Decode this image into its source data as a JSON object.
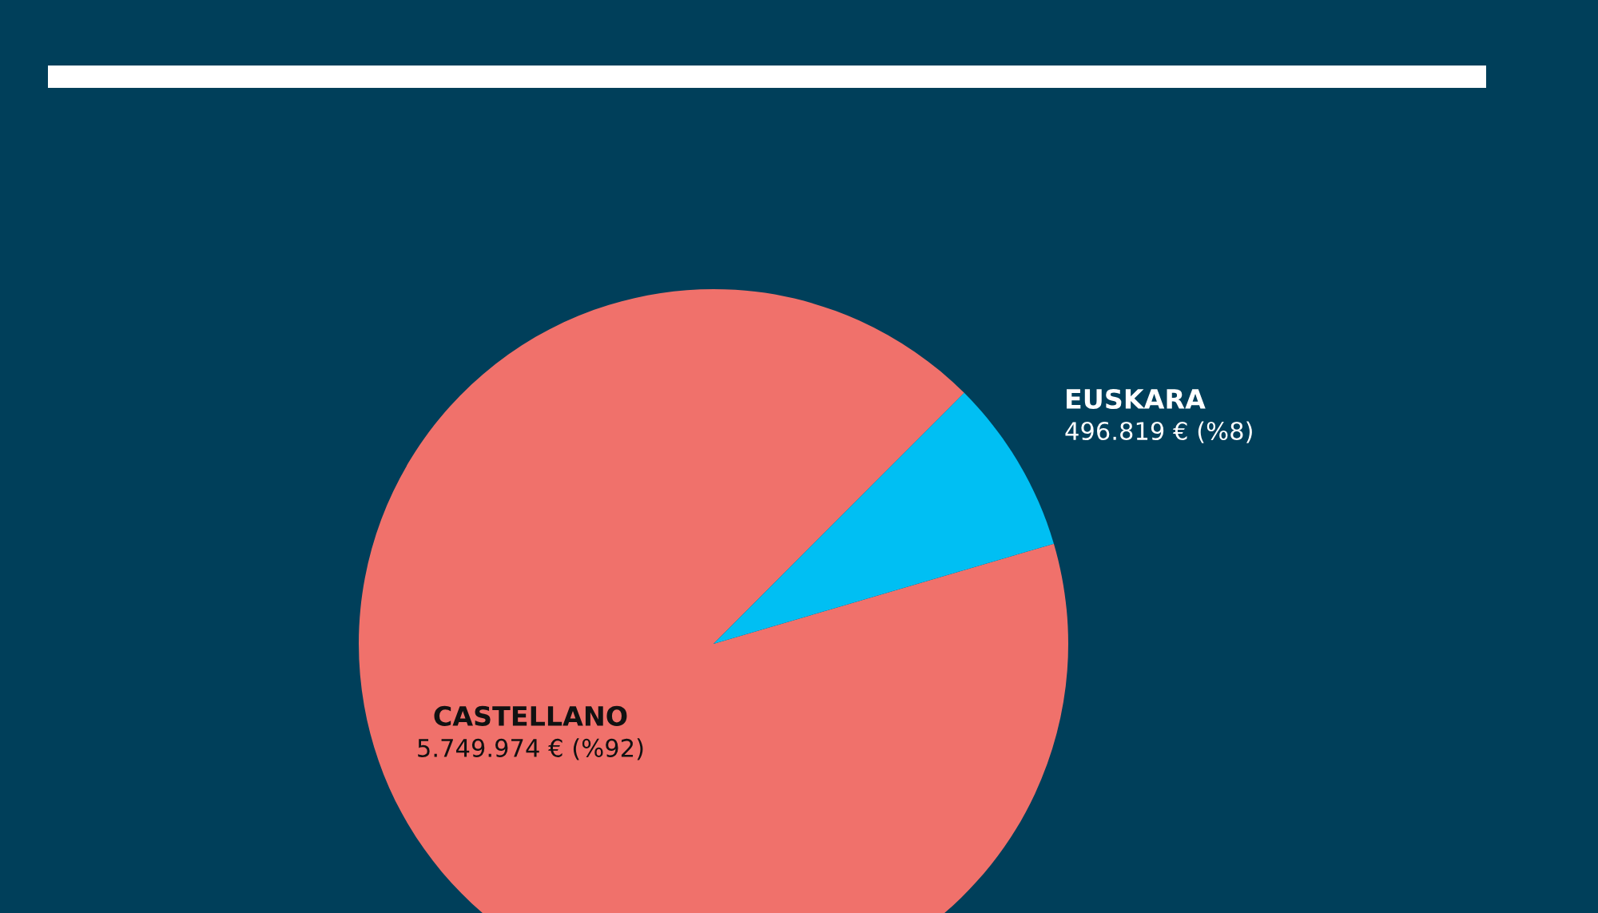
{
  "chart_data": {
    "type": "pie",
    "categories": [
      "CASTELLANO",
      "EUSKARA"
    ],
    "values": [
      5749974,
      496819
    ],
    "colors": [
      "#f0716b",
      "#00bff3"
    ],
    "value_labels": [
      "5.749.974 € (%92)",
      "496.819 € (%8)"
    ]
  }
}
